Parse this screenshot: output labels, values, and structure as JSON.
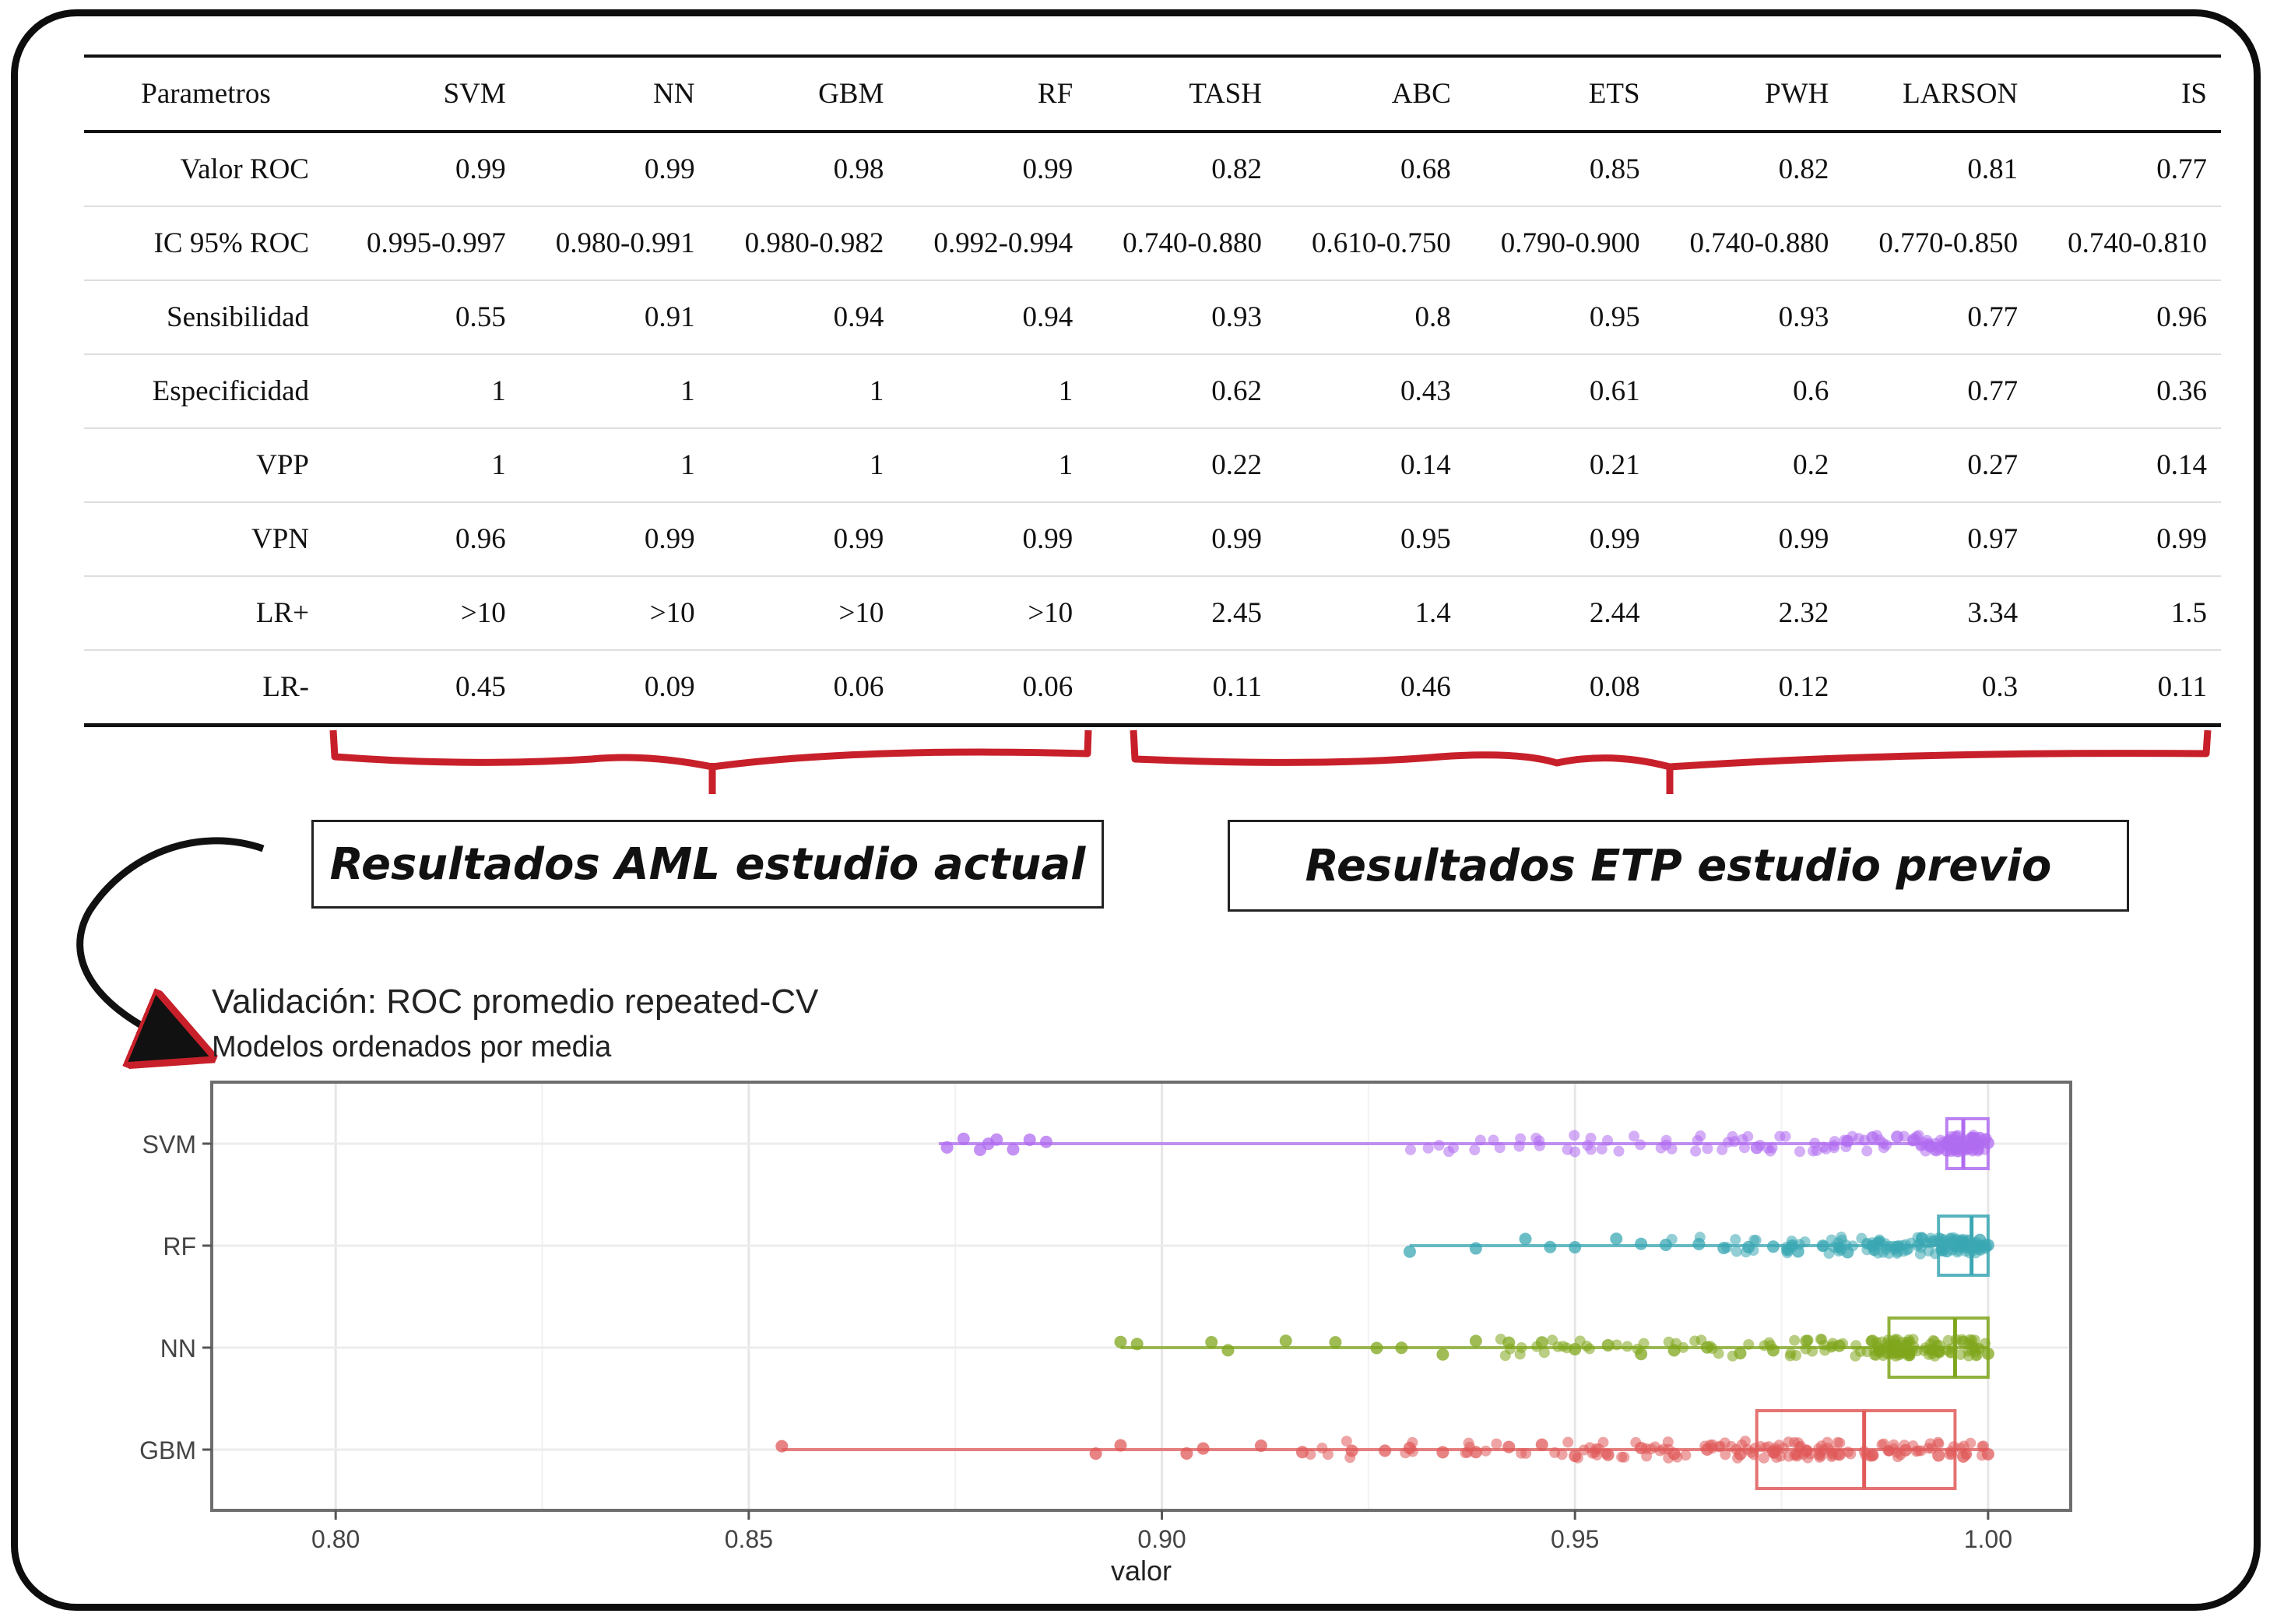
{
  "table": {
    "headers": [
      "Parametros",
      "SVM",
      "NN",
      "GBM",
      "RF",
      "TASH",
      "ABC",
      "ETS",
      "PWH",
      "LARSON",
      "IS"
    ],
    "rows": [
      [
        "Valor ROC",
        "0.99",
        "0.99",
        "0.98",
        "0.99",
        "0.82",
        "0.68",
        "0.85",
        "0.82",
        "0.81",
        "0.77"
      ],
      [
        "IC 95% ROC",
        "0.995-0.997",
        "0.980-0.991",
        "0.980-0.982",
        "0.992-0.994",
        "0.740-0.880",
        "0.610-0.750",
        "0.790-0.900",
        "0.740-0.880",
        "0.770-0.850",
        "0.740-0.810"
      ],
      [
        "Sensibilidad",
        "0.55",
        "0.91",
        "0.94",
        "0.94",
        "0.93",
        "0.8",
        "0.95",
        "0.93",
        "0.77",
        "0.96"
      ],
      [
        "Especificidad",
        "1",
        "1",
        "1",
        "1",
        "0.62",
        "0.43",
        "0.61",
        "0.6",
        "0.77",
        "0.36"
      ],
      [
        "VPP",
        "1",
        "1",
        "1",
        "1",
        "0.22",
        "0.14",
        "0.21",
        "0.2",
        "0.27",
        "0.14"
      ],
      [
        "VPN",
        "0.96",
        "0.99",
        "0.99",
        "0.99",
        "0.99",
        "0.95",
        "0.99",
        "0.99",
        "0.97",
        "0.99"
      ],
      [
        "LR+",
        ">10",
        ">10",
        ">10",
        ">10",
        "2.45",
        "1.4",
        "2.44",
        "2.32",
        "3.34",
        "1.5"
      ],
      [
        "LR-",
        "0.45",
        "0.09",
        "0.06",
        "0.06",
        "0.11",
        "0.46",
        "0.08",
        "0.12",
        "0.3",
        "0.11"
      ]
    ]
  },
  "labels": {
    "aml": "Resultados AML estudio actual",
    "etp": "Resultados ETP estudio previo"
  },
  "colors": {
    "bracket": "#c8202a",
    "svm": "#b06cf0",
    "rf": "#3aa7b3",
    "nn": "#7fa51c",
    "gbm": "#e05a5a"
  },
  "chart_data": {
    "type": "box-jitter",
    "title": "Validación: ROC promedio repeated-CV",
    "subtitle": "Modelos ordenados por media",
    "xlabel": "valor",
    "xlim": [
      0.785,
      1.01
    ],
    "xticks": [
      "0.80",
      "0.85",
      "0.90",
      "0.95",
      "1.00"
    ],
    "xtick_values": [
      0.8,
      0.85,
      0.9,
      0.95,
      1.0
    ],
    "grid": true,
    "series": [
      {
        "name": "SVM",
        "color": "#b06cf0",
        "min": 0.873,
        "q1": 0.995,
        "median": 0.997,
        "q3": 1.0,
        "max": 1.0,
        "points": [
          0.874,
          0.876,
          0.878,
          0.879,
          0.88,
          0.882,
          0.884,
          0.886,
          0.972,
          0.983,
          0.986,
          0.989,
          0.991,
          0.993,
          0.995,
          0.996,
          0.997,
          0.998,
          0.999,
          1.0
        ]
      },
      {
        "name": "RF",
        "color": "#3aa7b3",
        "min": 0.93,
        "q1": 0.994,
        "median": 0.998,
        "q3": 1.0,
        "max": 1.0,
        "points": [
          0.93,
          0.938,
          0.944,
          0.947,
          0.95,
          0.955,
          0.958,
          0.961,
          0.965,
          0.968,
          0.971,
          0.974,
          0.977,
          0.98,
          0.983,
          0.986,
          0.989,
          0.992,
          0.995,
          0.997,
          0.999,
          1.0
        ]
      },
      {
        "name": "NN",
        "color": "#7fa51c",
        "min": 0.895,
        "q1": 0.988,
        "median": 0.996,
        "q3": 1.0,
        "max": 1.0,
        "points": [
          0.895,
          0.897,
          0.906,
          0.908,
          0.915,
          0.921,
          0.926,
          0.929,
          0.934,
          0.938,
          0.942,
          0.946,
          0.95,
          0.954,
          0.958,
          0.962,
          0.966,
          0.97,
          0.974,
          0.978,
          0.982,
          0.986,
          0.99,
          0.994,
          0.997,
          1.0
        ]
      },
      {
        "name": "GBM",
        "color": "#e05a5a",
        "min": 0.854,
        "q1": 0.972,
        "median": 0.985,
        "q3": 0.996,
        "max": 1.0,
        "points": [
          0.854,
          0.892,
          0.895,
          0.903,
          0.905,
          0.912,
          0.917,
          0.923,
          0.927,
          0.93,
          0.934,
          0.938,
          0.942,
          0.946,
          0.95,
          0.954,
          0.958,
          0.962,
          0.966,
          0.97,
          0.974,
          0.978,
          0.982,
          0.986,
          0.99,
          0.994,
          0.997,
          1.0
        ]
      }
    ]
  }
}
